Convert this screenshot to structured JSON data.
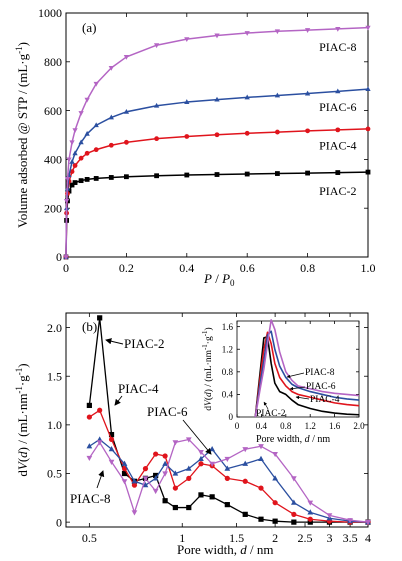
{
  "chart_data": [
    {
      "type": "line",
      "panel_label": "(a)",
      "xlabel_main": "P",
      "xlabel_sep": " / ",
      "xlabel_sub_base": "P",
      "xlabel_sub": "0",
      "ylabel": "Volume adsorbed @ STP / (mL·g",
      "ylabel_sup": "-1",
      "ylabel_end": ")",
      "xlim": [
        0,
        1.0
      ],
      "ylim": [
        0,
        1000
      ],
      "xticks": [
        0,
        0.2,
        0.4,
        0.6,
        0.8,
        1.0
      ],
      "xtick_labels": [
        "0",
        "0.2",
        "0.4",
        "0.6",
        "0.8",
        "1.0"
      ],
      "yticks": [
        0,
        200,
        400,
        600,
        800,
        1000
      ],
      "ytick_labels": [
        "0",
        "200",
        "400",
        "600",
        "800",
        "1000"
      ],
      "series": [
        {
          "name": "PIAC-2",
          "color": "#000000",
          "marker": "square",
          "x": [
            0.0,
            0.002,
            0.005,
            0.01,
            0.02,
            0.03,
            0.05,
            0.07,
            0.1,
            0.15,
            0.2,
            0.3,
            0.4,
            0.5,
            0.6,
            0.7,
            0.8,
            0.9,
            1.0
          ],
          "y": [
            0,
            150,
            230,
            270,
            295,
            305,
            313,
            318,
            322,
            326,
            329,
            333,
            336,
            338,
            340,
            342,
            344,
            346,
            348
          ]
        },
        {
          "name": "PIAC-4",
          "color": "#e0141c",
          "marker": "circle",
          "x": [
            0.0,
            0.002,
            0.005,
            0.01,
            0.02,
            0.03,
            0.05,
            0.07,
            0.1,
            0.15,
            0.2,
            0.3,
            0.4,
            0.5,
            0.6,
            0.7,
            0.8,
            0.9,
            1.0
          ],
          "y": [
            0,
            180,
            260,
            310,
            350,
            375,
            405,
            425,
            440,
            458,
            470,
            485,
            494,
            501,
            507,
            512,
            517,
            521,
            525
          ]
        },
        {
          "name": "PIAC-6",
          "color": "#2b4fa0",
          "marker": "triangle-up",
          "x": [
            0.0,
            0.002,
            0.005,
            0.01,
            0.02,
            0.03,
            0.05,
            0.07,
            0.1,
            0.15,
            0.2,
            0.3,
            0.4,
            0.5,
            0.6,
            0.7,
            0.8,
            0.9,
            1.0
          ],
          "y": [
            0,
            200,
            280,
            335,
            390,
            425,
            470,
            505,
            540,
            572,
            595,
            620,
            635,
            645,
            654,
            662,
            670,
            679,
            688
          ]
        },
        {
          "name": "PIAC-8",
          "color": "#b465c4",
          "marker": "triangle-down",
          "x": [
            0.0,
            0.002,
            0.005,
            0.01,
            0.02,
            0.03,
            0.05,
            0.07,
            0.1,
            0.15,
            0.2,
            0.3,
            0.4,
            0.5,
            0.6,
            0.7,
            0.8,
            0.9,
            1.0
          ],
          "y": [
            0,
            230,
            320,
            400,
            470,
            520,
            590,
            645,
            710,
            775,
            820,
            868,
            893,
            908,
            918,
            925,
            930,
            935,
            940
          ]
        }
      ],
      "annotations": [
        {
          "text": "PIAC-8",
          "x": 0.9,
          "y": 845
        },
        {
          "text": "PIAC-6",
          "x": 0.9,
          "y": 598
        },
        {
          "text": "PIAC-4",
          "x": 0.9,
          "y": 440
        },
        {
          "text": "PIAC-2",
          "x": 0.9,
          "y": 255
        }
      ]
    },
    {
      "type": "line",
      "panel_label": "(b)",
      "xlabel": "Pore width, ",
      "xlabel_italic": "d",
      "xlabel_end": " / nm",
      "ylabel_pre": "d",
      "ylabel_v": "V",
      "ylabel_mid": "(",
      "ylabel_d": "d",
      "ylabel_post": ") / (mL·nm",
      "ylabel_sup1": "-1",
      "ylabel_g": "·g",
      "ylabel_sup2": "-1",
      "ylabel_end": ")",
      "xscale": "log",
      "xlim": [
        0.42,
        4.0
      ],
      "ylim": [
        -0.05,
        2.15
      ],
      "xticks": [
        0.5,
        1,
        1.5,
        2,
        2.5,
        3,
        3.5,
        4
      ],
      "xtick_labels": [
        "0.5",
        "1",
        "1.5",
        "2",
        "2.5",
        "3",
        "3.5",
        "4"
      ],
      "yticks": [
        0,
        0.5,
        1.0,
        1.5,
        2.0
      ],
      "ytick_labels": [
        "0",
        "0.5",
        "1.0",
        "1.5",
        "2.0"
      ],
      "series": [
        {
          "name": "PIAC-2",
          "color": "#000000",
          "marker": "square",
          "x": [
            0.5,
            0.54,
            0.59,
            0.65,
            0.7,
            0.76,
            0.82,
            0.88,
            0.95,
            1.05,
            1.15,
            1.25,
            1.4,
            1.6,
            1.8,
            2.0,
            2.3,
            2.6,
            3.0,
            3.5,
            4.0
          ],
          "y": [
            1.2,
            2.1,
            0.9,
            0.5,
            0.42,
            0.45,
            0.48,
            0.22,
            0.15,
            0.15,
            0.28,
            0.26,
            0.18,
            0.08,
            0.03,
            0.01,
            0.0,
            0.0,
            0.0,
            0.0,
            0.0
          ]
        },
        {
          "name": "PIAC-4",
          "color": "#e0141c",
          "marker": "circle",
          "x": [
            0.5,
            0.54,
            0.59,
            0.65,
            0.7,
            0.76,
            0.82,
            0.88,
            0.95,
            1.05,
            1.15,
            1.25,
            1.4,
            1.6,
            1.8,
            2.0,
            2.3,
            2.6,
            3.0,
            3.5,
            4.0
          ],
          "y": [
            1.08,
            1.15,
            0.85,
            0.55,
            0.38,
            0.55,
            0.7,
            0.68,
            0.35,
            0.45,
            0.6,
            0.58,
            0.45,
            0.42,
            0.35,
            0.2,
            0.08,
            0.03,
            0.01,
            0.0,
            0.0
          ]
        },
        {
          "name": "PIAC-6",
          "color": "#2b4fa0",
          "marker": "triangle-up",
          "x": [
            0.5,
            0.54,
            0.59,
            0.65,
            0.7,
            0.76,
            0.82,
            0.88,
            0.95,
            1.05,
            1.15,
            1.25,
            1.4,
            1.6,
            1.8,
            2.0,
            2.3,
            2.6,
            3.0,
            3.5,
            4.0
          ],
          "y": [
            0.78,
            0.85,
            0.75,
            0.6,
            0.42,
            0.38,
            0.45,
            0.6,
            0.5,
            0.55,
            0.65,
            0.75,
            0.55,
            0.6,
            0.65,
            0.45,
            0.2,
            0.1,
            0.04,
            0.01,
            0.0
          ]
        },
        {
          "name": "PIAC-8",
          "color": "#b465c4",
          "marker": "triangle-down",
          "x": [
            0.5,
            0.54,
            0.59,
            0.65,
            0.7,
            0.76,
            0.82,
            0.88,
            0.95,
            1.05,
            1.15,
            1.25,
            1.4,
            1.6,
            1.8,
            2.0,
            2.3,
            2.6,
            3.0,
            3.5,
            4.0
          ],
          "y": [
            0.66,
            0.82,
            0.62,
            0.42,
            0.1,
            0.45,
            0.32,
            0.5,
            0.82,
            0.85,
            0.72,
            0.6,
            0.65,
            0.75,
            0.78,
            0.7,
            0.45,
            0.2,
            0.07,
            0.02,
            0.0
          ]
        }
      ],
      "annotations": [
        {
          "text": "PIAC-2"
        },
        {
          "text": "PIAC-4"
        },
        {
          "text": "PIAC-6"
        },
        {
          "text": "PIAC-8"
        }
      ],
      "inset": {
        "xlabel": "Pore width, ",
        "xlabel_italic": "d",
        "xlabel_end": " / nm",
        "ylabel_pre": "d",
        "ylabel_v": "V",
        "ylabel_mid": "(",
        "ylabel_d": "d",
        "ylabel_post": ") / (mL·nm",
        "ylabel_sup1": "-1",
        "ylabel_g": "·g",
        "ylabel_sup2": "-1",
        "ylabel_end": ")",
        "xlim": [
          0.0,
          2.0
        ],
        "ylim": [
          0.0,
          1.7
        ],
        "xticks": [
          0,
          0.4,
          0.8,
          1.2,
          1.6,
          2.0
        ],
        "xtick_labels": [
          "0",
          "0.4",
          "0.8",
          "1.2",
          "1.6",
          "2.0"
        ],
        "yticks": [
          0,
          0.4,
          0.8,
          1.2,
          1.6
        ],
        "ytick_labels": [
          "0",
          "0.4",
          "0.8",
          "1.2",
          "1.6"
        ],
        "series": [
          {
            "name": "PIAC-2",
            "color": "#000000",
            "x": [
              0.3,
              0.38,
              0.44,
              0.5,
              0.56,
              0.62,
              0.7,
              0.8,
              0.9,
              1.0,
              1.2,
              1.4,
              1.6,
              1.8,
              2.0
            ],
            "y": [
              0.0,
              0.8,
              1.4,
              1.42,
              0.95,
              0.6,
              0.45,
              0.4,
              0.3,
              0.22,
              0.15,
              0.1,
              0.07,
              0.05,
              0.04
            ]
          },
          {
            "name": "PIAC-4",
            "color": "#e0141c",
            "x": [
              0.3,
              0.38,
              0.44,
              0.5,
              0.56,
              0.62,
              0.7,
              0.8,
              0.9,
              1.0,
              1.2,
              1.4,
              1.6,
              1.8,
              2.0
            ],
            "y": [
              0.0,
              0.7,
              1.2,
              1.5,
              1.3,
              0.95,
              0.7,
              0.55,
              0.45,
              0.4,
              0.35,
              0.3,
              0.25,
              0.22,
              0.2
            ]
          },
          {
            "name": "PIAC-6",
            "color": "#2b4fa0",
            "x": [
              0.3,
              0.38,
              0.44,
              0.5,
              0.56,
              0.62,
              0.7,
              0.8,
              0.9,
              1.0,
              1.2,
              1.4,
              1.6,
              1.8,
              2.0
            ],
            "y": [
              0.0,
              0.6,
              1.0,
              1.45,
              1.52,
              1.2,
              0.9,
              0.7,
              0.58,
              0.52,
              0.45,
              0.4,
              0.35,
              0.32,
              0.3
            ]
          },
          {
            "name": "PIAC-8",
            "color": "#b465c4",
            "x": [
              0.3,
              0.38,
              0.44,
              0.5,
              0.56,
              0.62,
              0.7,
              0.8,
              0.9,
              1.0,
              1.2,
              1.4,
              1.6,
              1.8,
              2.0
            ],
            "y": [
              0.0,
              0.5,
              0.85,
              1.3,
              1.72,
              1.55,
              1.15,
              0.8,
              0.65,
              0.55,
              0.5,
              0.45,
              0.42,
              0.4,
              0.38
            ]
          }
        ],
        "annotations": [
          {
            "text": "PIAC-8"
          },
          {
            "text": "PIAC-6"
          },
          {
            "text": "PIAC-4"
          },
          {
            "text": "PIAC-2"
          }
        ]
      }
    }
  ]
}
